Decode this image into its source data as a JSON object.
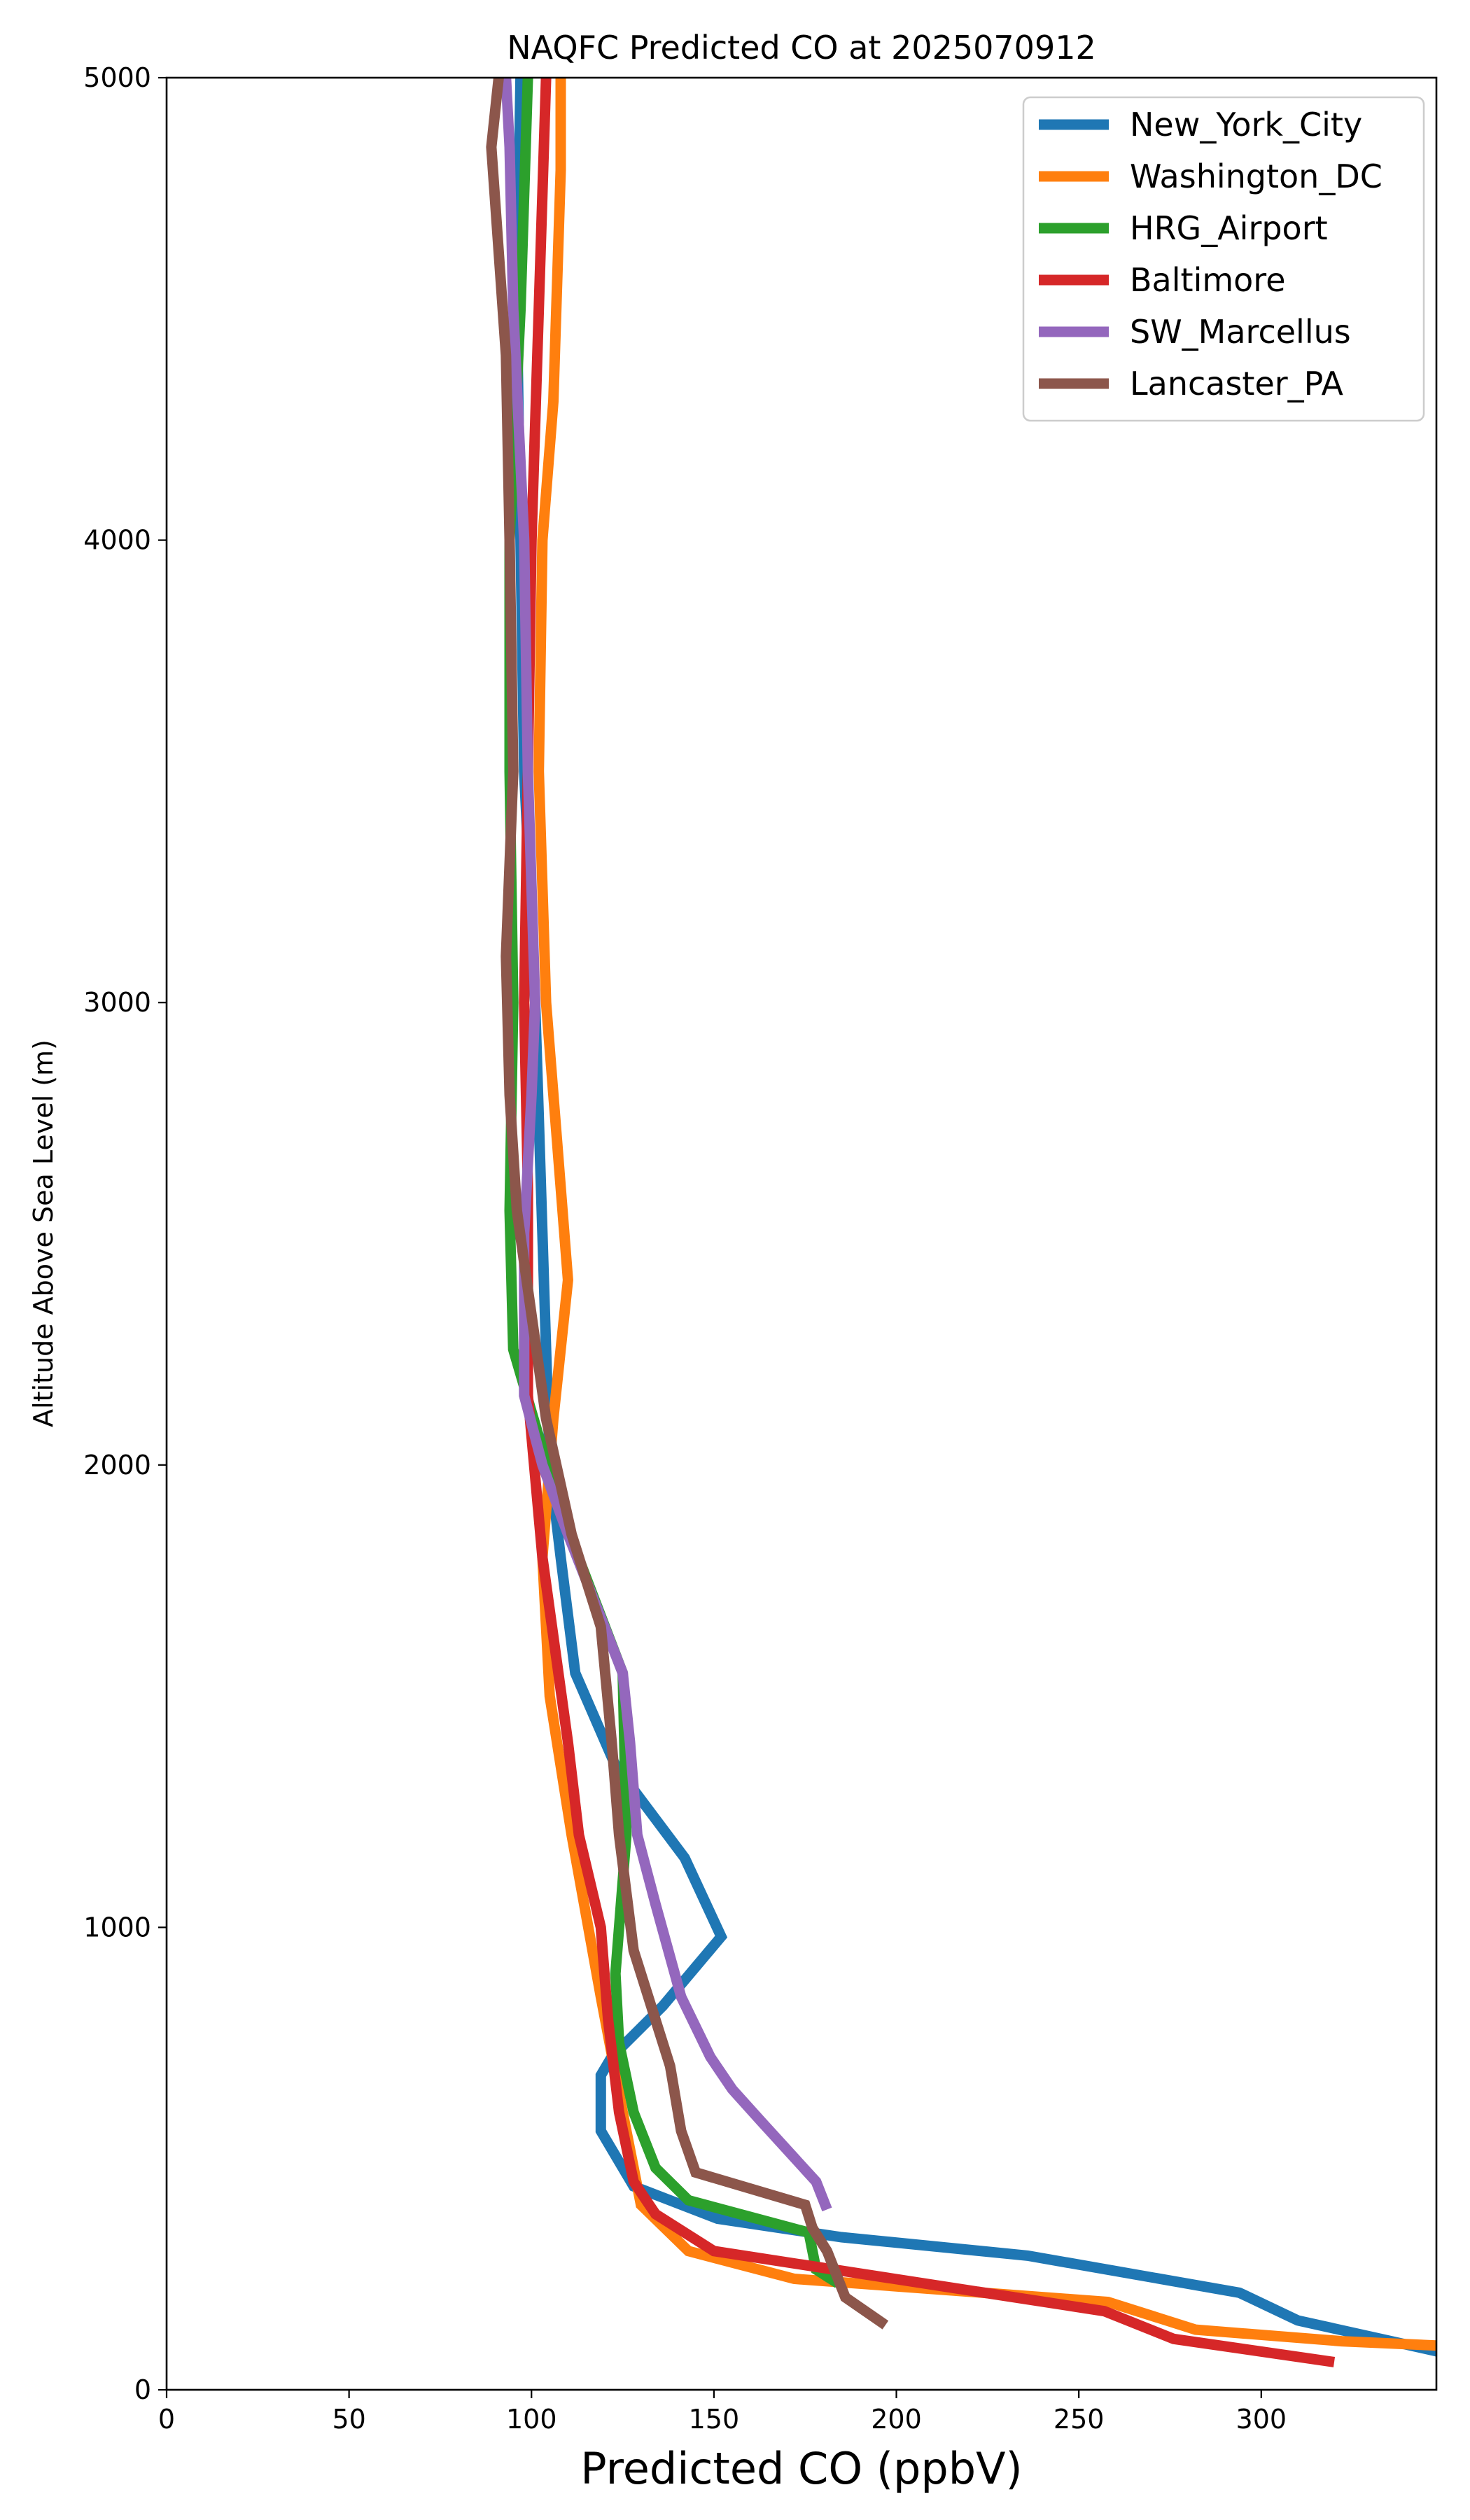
{
  "chart_data": {
    "type": "line",
    "title": "NAQFC Predicted CO at 2025070912",
    "xlabel": "Predicted CO (ppbV)",
    "ylabel": "Altitude Above Sea Level (m)",
    "xlim": [
      0,
      348
    ],
    "ylim": [
      0,
      5000
    ],
    "xticks": [
      0,
      50,
      100,
      150,
      200,
      250,
      300
    ],
    "yticks": [
      0,
      1000,
      2000,
      3000,
      4000,
      5000
    ],
    "grid": false,
    "legend_position": "top-right",
    "series": [
      {
        "name": "New_York_City",
        "color": "#1f77b4",
        "points": [
          [
            350,
            80
          ],
          [
            310,
            150
          ],
          [
            294,
            210
          ],
          [
            236,
            290
          ],
          [
            185,
            330
          ],
          [
            151,
            370
          ],
          [
            128,
            440
          ],
          [
            119,
            560
          ],
          [
            119,
            680
          ],
          [
            122,
            720
          ],
          [
            136,
            830
          ],
          [
            152,
            980
          ],
          [
            142,
            1150
          ],
          [
            123,
            1350
          ],
          [
            112,
            1550
          ],
          [
            108,
            1800
          ],
          [
            105,
            2000
          ],
          [
            103,
            2500
          ],
          [
            101,
            3000
          ],
          [
            98,
            3500
          ],
          [
            97,
            4000
          ],
          [
            96,
            4500
          ],
          [
            97,
            5000
          ]
        ]
      },
      {
        "name": "Washington_DC",
        "color": "#ff7f0e",
        "points": [
          [
            350,
            95
          ],
          [
            322,
            105
          ],
          [
            282,
            130
          ],
          [
            258,
            190
          ],
          [
            172,
            240
          ],
          [
            143,
            300
          ],
          [
            130,
            400
          ],
          [
            125,
            600
          ],
          [
            119,
            850
          ],
          [
            111,
            1200
          ],
          [
            105,
            1500
          ],
          [
            103,
            1800
          ],
          [
            106,
            2100
          ],
          [
            110,
            2400
          ],
          [
            107,
            2700
          ],
          [
            104,
            3000
          ],
          [
            102,
            3500
          ],
          [
            103,
            4000
          ],
          [
            106,
            4300
          ],
          [
            108,
            4800
          ],
          [
            108,
            5000
          ]
        ]
      },
      {
        "name": "HRG_Airport",
        "color": "#2ca02c",
        "points": [
          [
            184,
            230
          ],
          [
            178,
            260
          ],
          [
            176,
            340
          ],
          [
            143,
            410
          ],
          [
            134,
            480
          ],
          [
            128,
            600
          ],
          [
            124,
            750
          ],
          [
            123,
            900
          ],
          [
            126,
            1200
          ],
          [
            125,
            1550
          ],
          [
            108,
            1900
          ],
          [
            95,
            2250
          ],
          [
            94,
            2550
          ],
          [
            95,
            3000
          ],
          [
            94,
            3500
          ],
          [
            94,
            4000
          ],
          [
            97,
            4500
          ],
          [
            99,
            5000
          ]
        ]
      },
      {
        "name": "Baltimore",
        "color": "#d62728",
        "points": [
          [
            320,
            60
          ],
          [
            276,
            110
          ],
          [
            257,
            170
          ],
          [
            150,
            300
          ],
          [
            134,
            380
          ],
          [
            128,
            450
          ],
          [
            124,
            600
          ],
          [
            121,
            800
          ],
          [
            119,
            1000
          ],
          [
            113,
            1200
          ],
          [
            110,
            1400
          ],
          [
            103,
            1800
          ],
          [
            99,
            2150
          ],
          [
            99,
            2600
          ],
          [
            98,
            3000
          ],
          [
            99,
            3500
          ],
          [
            100,
            4000
          ],
          [
            102,
            4500
          ],
          [
            104,
            5000
          ]
        ]
      },
      {
        "name": "SW_Marcellus",
        "color": "#9467bd",
        "points": [
          [
            181,
            390
          ],
          [
            178,
            450
          ],
          [
            163,
            580
          ],
          [
            155,
            650
          ],
          [
            149,
            720
          ],
          [
            141,
            850
          ],
          [
            134,
            1050
          ],
          [
            129,
            1200
          ],
          [
            127,
            1400
          ],
          [
            125,
            1550
          ],
          [
            110,
            1850
          ],
          [
            103,
            2000
          ],
          [
            98,
            2150
          ],
          [
            98,
            2500
          ],
          [
            100,
            2800
          ],
          [
            101,
            3000
          ],
          [
            99,
            3500
          ],
          [
            98,
            4000
          ],
          [
            95,
            4500
          ],
          [
            94,
            4850
          ],
          [
            93,
            5000
          ]
        ]
      },
      {
        "name": "Lancaster_PA",
        "color": "#8c564b",
        "points": [
          [
            197,
            140
          ],
          [
            186,
            200
          ],
          [
            181,
            300
          ],
          [
            177,
            350
          ],
          [
            175,
            400
          ],
          [
            145,
            470
          ],
          [
            141,
            560
          ],
          [
            138,
            700
          ],
          [
            128,
            950
          ],
          [
            124,
            1200
          ],
          [
            122,
            1400
          ],
          [
            119,
            1650
          ],
          [
            111,
            1850
          ],
          [
            104,
            2100
          ],
          [
            96,
            2550
          ],
          [
            94,
            2800
          ],
          [
            93,
            3100
          ],
          [
            95,
            3500
          ],
          [
            94,
            4000
          ],
          [
            93,
            4400
          ],
          [
            89,
            4850
          ],
          [
            91,
            5000
          ]
        ]
      }
    ]
  }
}
